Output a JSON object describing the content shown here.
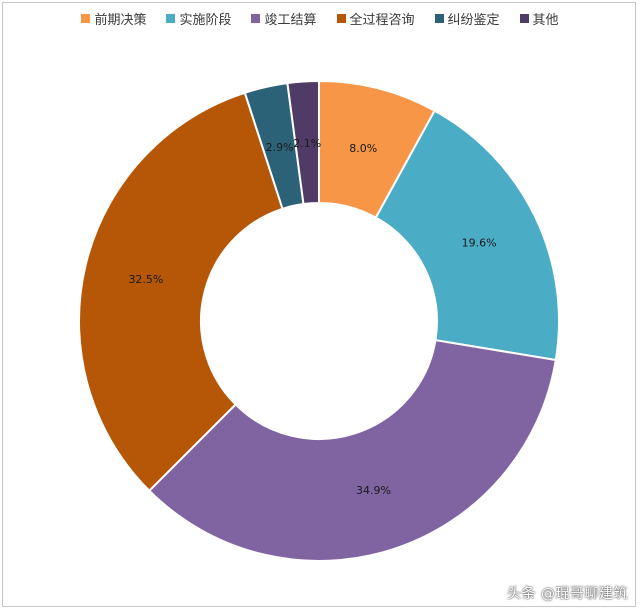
{
  "chart_data": {
    "type": "pie",
    "donut": true,
    "legend_position": "top",
    "data_labels": [
      "8.0%",
      "19.6%",
      "34.9%",
      "32.5%",
      "2.9%",
      "2.1%"
    ],
    "series": [
      {
        "name": "前期决策",
        "value": 8.0,
        "color": "#f79646"
      },
      {
        "name": "实施阶段",
        "value": 19.6,
        "color": "#4bacc6"
      },
      {
        "name": "竣工结算",
        "value": 34.9,
        "color": "#8064a2"
      },
      {
        "name": "全过程咨询",
        "value": 32.5,
        "color": "#b65708"
      },
      {
        "name": "纠纷鉴定",
        "value": 2.9,
        "color": "#2c6278"
      },
      {
        "name": "其他",
        "value": 2.1,
        "color": "#4f3b65"
      }
    ]
  },
  "watermark": "头条 @琨哥聊建筑"
}
